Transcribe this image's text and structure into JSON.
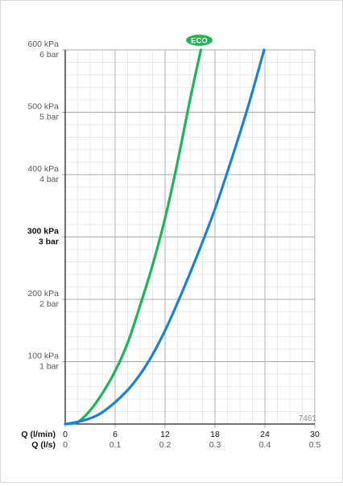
{
  "chart_data": {
    "type": "line",
    "ylim_kpa": [
      0,
      600
    ],
    "xlim_lmin": [
      0,
      30
    ],
    "grid": true,
    "y_ticks": [
      {
        "kpa": "100 kPa",
        "bar": "1 bar",
        "value": 100,
        "bold": false
      },
      {
        "kpa": "200 kPa",
        "bar": "2 bar",
        "value": 200,
        "bold": false
      },
      {
        "kpa": "300 kPa",
        "bar": "3 bar",
        "value": 300,
        "bold": true
      },
      {
        "kpa": "400 kPa",
        "bar": "4 bar",
        "value": 400,
        "bold": false
      },
      {
        "kpa": "500 kPa",
        "bar": "5 bar",
        "value": 500,
        "bold": false
      },
      {
        "kpa": "600 kPa",
        "bar": "6 bar",
        "value": 600,
        "bold": false
      }
    ],
    "x_axis_1": {
      "label": "Q (l/min)",
      "ticks": [
        "0",
        "6",
        "12",
        "18",
        "24",
        "30"
      ],
      "values": [
        0,
        6,
        12,
        18,
        24,
        30
      ]
    },
    "x_axis_2": {
      "label": "Q (l/s)",
      "ticks": [
        "0",
        "0.1",
        "0.2",
        "0.3",
        "0.4",
        "0.5"
      ],
      "values": [
        0,
        0.1,
        0.2,
        0.3,
        0.4,
        0.5
      ]
    },
    "series": [
      {
        "color": "#1fb457",
        "badge": "ECO",
        "x": [
          0,
          1.5,
          3,
          4.5,
          6,
          7.5,
          9,
          10.5,
          12,
          13.5,
          15,
          16.3
        ],
        "y": [
          0,
          3,
          22,
          50,
          85,
          130,
          190,
          255,
          330,
          420,
          520,
          600
        ]
      },
      {
        "color": "#1e82d2",
        "x": [
          0,
          2,
          4,
          6,
          8,
          10,
          12,
          14,
          16,
          18,
          20,
          22,
          23.9
        ],
        "y": [
          0,
          5,
          15,
          35,
          62,
          100,
          150,
          210,
          275,
          345,
          425,
          510,
          600
        ]
      }
    ],
    "code": "7461"
  }
}
